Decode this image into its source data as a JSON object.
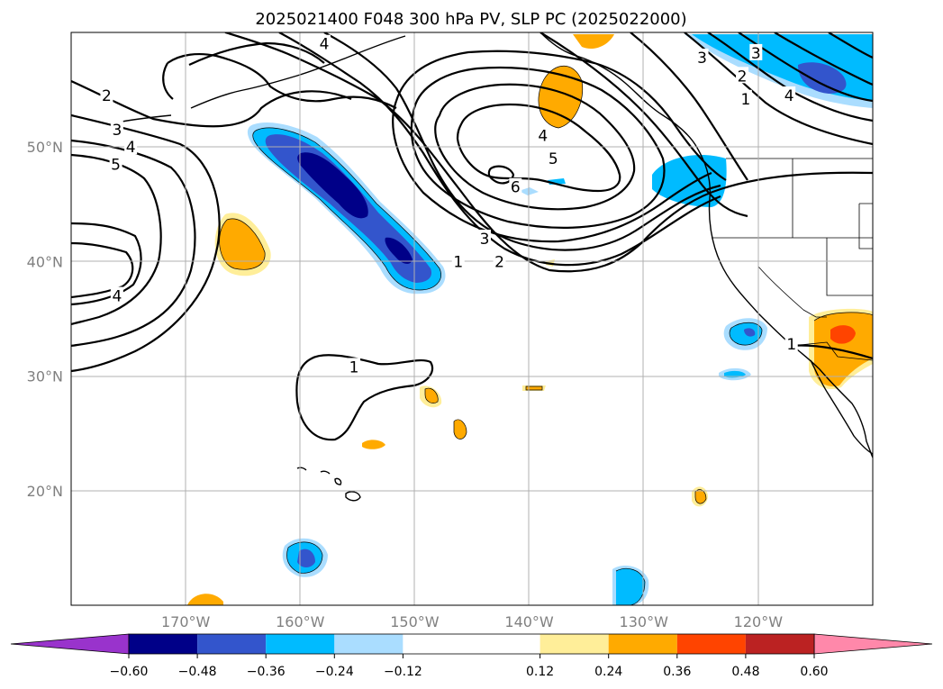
{
  "chart_data": {
    "type": "map",
    "title": "2025021400 F048 300 hPa PV, SLP PC (2025022000)",
    "lon_range": [
      -180,
      -110
    ],
    "lat_range": [
      10,
      60
    ],
    "grid": true,
    "x_ticks": [
      {
        "value": -170,
        "label": "170°W"
      },
      {
        "value": -160,
        "label": "160°W"
      },
      {
        "value": -150,
        "label": "150°W"
      },
      {
        "value": -140,
        "label": "140°W"
      },
      {
        "value": -130,
        "label": "130°W"
      },
      {
        "value": -120,
        "label": "120°W"
      }
    ],
    "y_ticks": [
      {
        "value": 20,
        "label": "20°N"
      },
      {
        "value": 30,
        "label": "30°N"
      },
      {
        "value": 40,
        "label": "40°N"
      },
      {
        "value": 50,
        "label": "50°N"
      }
    ],
    "colorbar": {
      "extend": "both",
      "under_color": "#9933cc",
      "over_color": "#ff88aa",
      "bins": [
        {
          "from": -0.6,
          "to": -0.48,
          "color": "#000088"
        },
        {
          "from": -0.48,
          "to": -0.36,
          "color": "#3355cc"
        },
        {
          "from": -0.36,
          "to": -0.24,
          "color": "#00bbff"
        },
        {
          "from": -0.24,
          "to": -0.12,
          "color": "#aaddff"
        },
        {
          "from": -0.12,
          "to": 0.12,
          "color": "#ffffff"
        },
        {
          "from": 0.12,
          "to": 0.24,
          "color": "#ffee99"
        },
        {
          "from": 0.24,
          "to": 0.36,
          "color": "#ffaa00"
        },
        {
          "from": 0.36,
          "to": 0.48,
          "color": "#ff4400"
        },
        {
          "from": 0.48,
          "to": 0.6,
          "color": "#bb2222"
        }
      ],
      "tick_labels": [
        "−0.60",
        "−0.48",
        "−0.36",
        "−0.24",
        "−0.12",
        "0.12",
        "0.24",
        "0.36",
        "0.48",
        "0.60"
      ]
    },
    "contour_labels": [
      {
        "text": "2",
        "lon": -176.9,
        "lat": 54.5
      },
      {
        "text": "3",
        "lon": -176.0,
        "lat": 51.5
      },
      {
        "text": "4",
        "lon": -174.8,
        "lat": 50.0
      },
      {
        "text": "5",
        "lon": -176.1,
        "lat": 48.5
      },
      {
        "text": "4",
        "lon": -176.0,
        "lat": 37.0
      },
      {
        "text": "4",
        "lon": -157.9,
        "lat": 59.0
      },
      {
        "text": "1",
        "lon": -155.3,
        "lat": 30.8
      },
      {
        "text": "3",
        "lon": -143.9,
        "lat": 42.0
      },
      {
        "text": "2",
        "lon": -142.6,
        "lat": 40.0
      },
      {
        "text": "1",
        "lon": -146.2,
        "lat": 40.0
      },
      {
        "text": "6",
        "lon": -141.2,
        "lat": 46.5
      },
      {
        "text": "5",
        "lon": -137.9,
        "lat": 49.0
      },
      {
        "text": "4",
        "lon": -138.8,
        "lat": 51.0
      },
      {
        "text": "3",
        "lon": -124.9,
        "lat": 57.8
      },
      {
        "text": "3",
        "lon": -120.2,
        "lat": 58.2
      },
      {
        "text": "2",
        "lon": -121.4,
        "lat": 56.2
      },
      {
        "text": "1",
        "lon": -121.1,
        "lat": 54.2
      },
      {
        "text": "4",
        "lon": -117.3,
        "lat": 54.5
      },
      {
        "text": "1",
        "lon": -117.1,
        "lat": 32.8
      }
    ]
  }
}
